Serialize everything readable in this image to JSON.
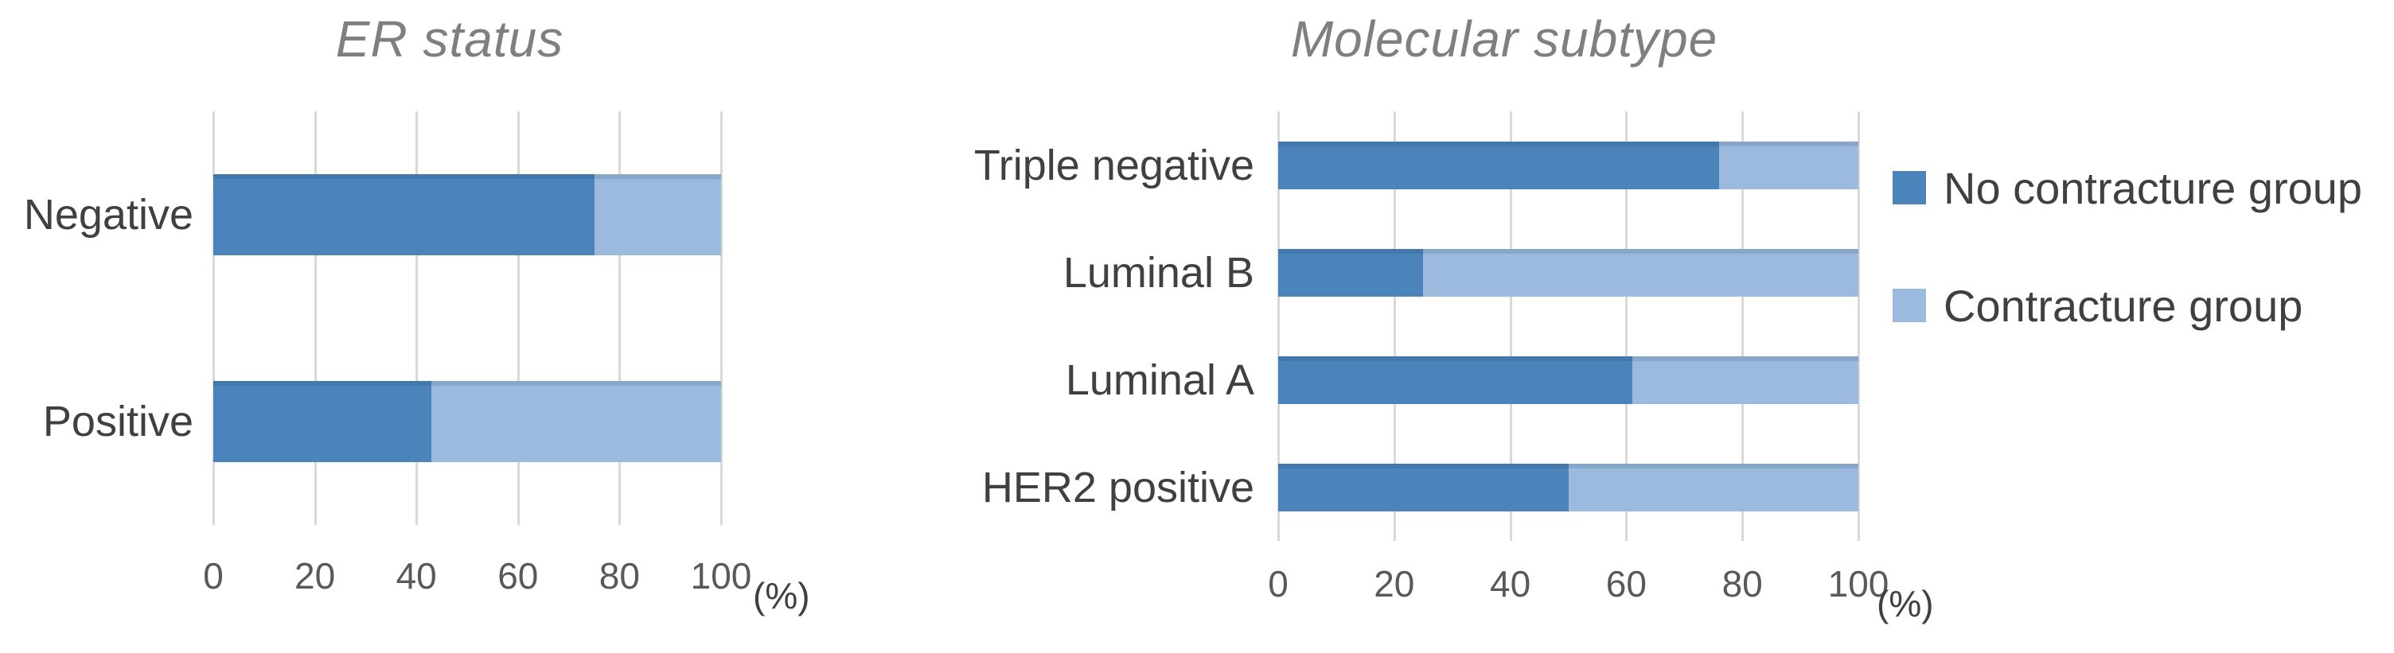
{
  "colors": {
    "series_dark": "#4A84BA",
    "series_light": "#9BBADD",
    "gridline": "#D9D9D9",
    "title_text": "#7F7F7F",
    "category_text": "#404040",
    "tick_text": "#595959"
  },
  "legend": {
    "items": [
      {
        "label": "No contracture group",
        "color": "#4A84BA"
      },
      {
        "label": "Contracture group",
        "color": "#9BBADD"
      }
    ]
  },
  "chart_data": [
    {
      "type": "bar",
      "orientation": "horizontal",
      "stacked": true,
      "title": "ER status",
      "categories": [
        "Negative",
        "Positive"
      ],
      "series": [
        {
          "name": "No contracture group",
          "values": [
            75,
            43
          ]
        },
        {
          "name": "Contracture group",
          "values": [
            25,
            57
          ]
        }
      ],
      "xlim": [
        0,
        100
      ],
      "xticks": [
        0,
        20,
        40,
        60,
        80,
        100
      ],
      "xlabel": "(%)",
      "grid": true,
      "legend_position": "none"
    },
    {
      "type": "bar",
      "orientation": "horizontal",
      "stacked": true,
      "title": "Molecular subtype",
      "categories": [
        "Triple negative",
        "Luminal B",
        "Luminal A",
        "HER2 positive"
      ],
      "series": [
        {
          "name": "No contracture group",
          "values": [
            76,
            25,
            61,
            50
          ]
        },
        {
          "name": "Contracture group",
          "values": [
            24,
            75,
            39,
            50
          ]
        }
      ],
      "xlim": [
        0,
        100
      ],
      "xticks": [
        0,
        20,
        40,
        60,
        80,
        100
      ],
      "xlabel": "(%)",
      "grid": true,
      "legend_position": "right"
    }
  ]
}
